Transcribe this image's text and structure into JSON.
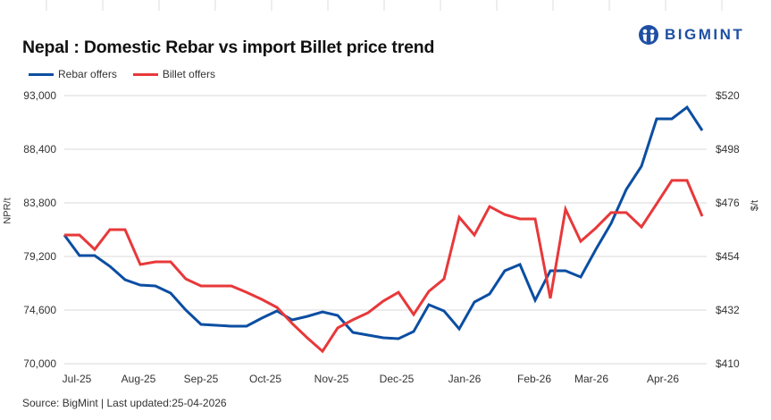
{
  "header": {
    "title": "Nepal : Domestic Rebar vs import Billet price trend",
    "logo_text": "BIGMINT",
    "logo_color": "#1f4fa3"
  },
  "legend": [
    {
      "label": "Rebar offers",
      "color": "#0b4ea2"
    },
    {
      "label": "Billet offers",
      "color": "#e8383a"
    }
  ],
  "footer": {
    "source": "Source: BigMint | Last updated:25-04-2026"
  },
  "chart_data": {
    "type": "line",
    "title": "Nepal : Domestic Rebar vs import Billet price trend",
    "xlabel": "",
    "ylabel": "NPR/t",
    "y2label": "$/t",
    "ylim": [
      70000,
      93000
    ],
    "y2lim": [
      410,
      520
    ],
    "y_ticks": [
      "93,000",
      "88,400",
      "83,800",
      "79,200",
      "74,600",
      "70,000"
    ],
    "y2_ticks": [
      "$520",
      "$498",
      "$476",
      "$454",
      "$432",
      "$410"
    ],
    "x_tick_labels": [
      "Jul-25",
      "Aug-25",
      "Sep-25",
      "Oct-25",
      "Nov-25",
      "Dec-25",
      "Jan-26",
      "Feb-26",
      "Mar-26",
      "Apr-26"
    ],
    "grid": true,
    "legend_position": "top-left",
    "series": [
      {
        "name": "Rebar offers",
        "axis": "left",
        "color": "#0b4ea2",
        "values": [
          81040,
          79280,
          79280,
          78360,
          77210,
          76750,
          76670,
          76060,
          74600,
          73370,
          73300,
          73220,
          73220,
          73910,
          74520,
          73760,
          74060,
          74450,
          74140,
          72680,
          72450,
          72220,
          72150,
          72760,
          75060,
          74520,
          72990,
          75290,
          75980,
          77970,
          78510,
          75440,
          77970,
          77970,
          77440,
          79810,
          82040,
          84950,
          86940,
          91010,
          91010,
          92000,
          90010
        ]
      },
      {
        "name": "Billet offers",
        "axis": "right",
        "color": "#e8383a",
        "values": [
          462.8,
          462.8,
          456.9,
          465.0,
          465.0,
          450.7,
          451.8,
          451.8,
          444.8,
          441.9,
          441.9,
          441.9,
          439.3,
          436.4,
          433.1,
          426.5,
          420.6,
          415.1,
          424.7,
          428.0,
          430.9,
          435.7,
          439.3,
          430.2,
          439.7,
          444.8,
          470.1,
          462.8,
          474.5,
          471.2,
          469.4,
          469.4,
          436.8,
          473.4,
          460.2,
          465.7,
          472.0,
          472.0,
          466.1,
          475.6,
          485.2,
          485.2,
          470.5
        ]
      }
    ]
  }
}
